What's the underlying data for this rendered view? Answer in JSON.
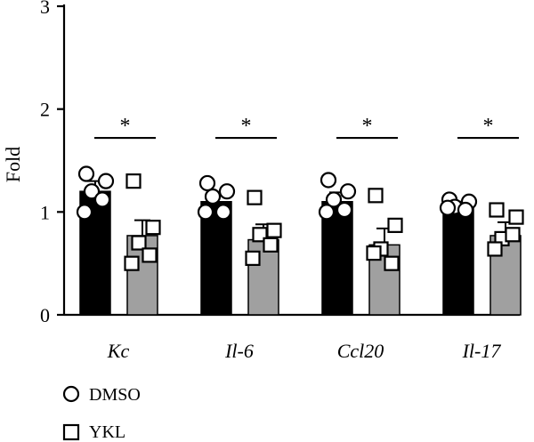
{
  "chart_data": {
    "type": "bar",
    "ylabel": "Fold",
    "ylim": [
      0,
      3
    ],
    "yticks": [
      "0",
      "1",
      "2",
      "3"
    ],
    "categories": [
      "Kc",
      "Il-6",
      "Ccl20",
      "Il-17"
    ],
    "series": [
      {
        "name": "DMSO",
        "color": "#000000",
        "marker": "circle",
        "values": [
          1.2,
          1.1,
          1.1,
          1.04
        ],
        "errors": [
          0.1,
          0.08,
          0.09,
          0.06
        ],
        "points": [
          [
            1.37,
            1.3,
            1.2,
            1.12,
            1.0
          ],
          [
            1.28,
            1.2,
            1.15,
            1.0,
            1.0
          ],
          [
            1.31,
            1.2,
            1.12,
            1.02,
            1.0
          ],
          [
            1.12,
            1.1,
            1.05,
            1.02,
            1.04
          ]
        ]
      },
      {
        "name": "YKL",
        "color": "#a0a0a0",
        "marker": "square",
        "values": [
          0.77,
          0.73,
          0.68,
          0.77
        ],
        "errors": [
          0.15,
          0.15,
          0.16,
          0.13
        ],
        "points": [
          [
            1.3,
            0.85,
            0.7,
            0.58,
            0.5
          ],
          [
            1.14,
            0.82,
            0.78,
            0.68,
            0.55
          ],
          [
            1.16,
            0.87,
            0.64,
            0.5,
            0.6
          ],
          [
            1.02,
            0.95,
            0.74,
            0.78,
            0.64
          ]
        ]
      }
    ],
    "significance": [
      "*",
      "*",
      "*",
      "*"
    ],
    "legend": {
      "position": "bottom-left"
    }
  }
}
